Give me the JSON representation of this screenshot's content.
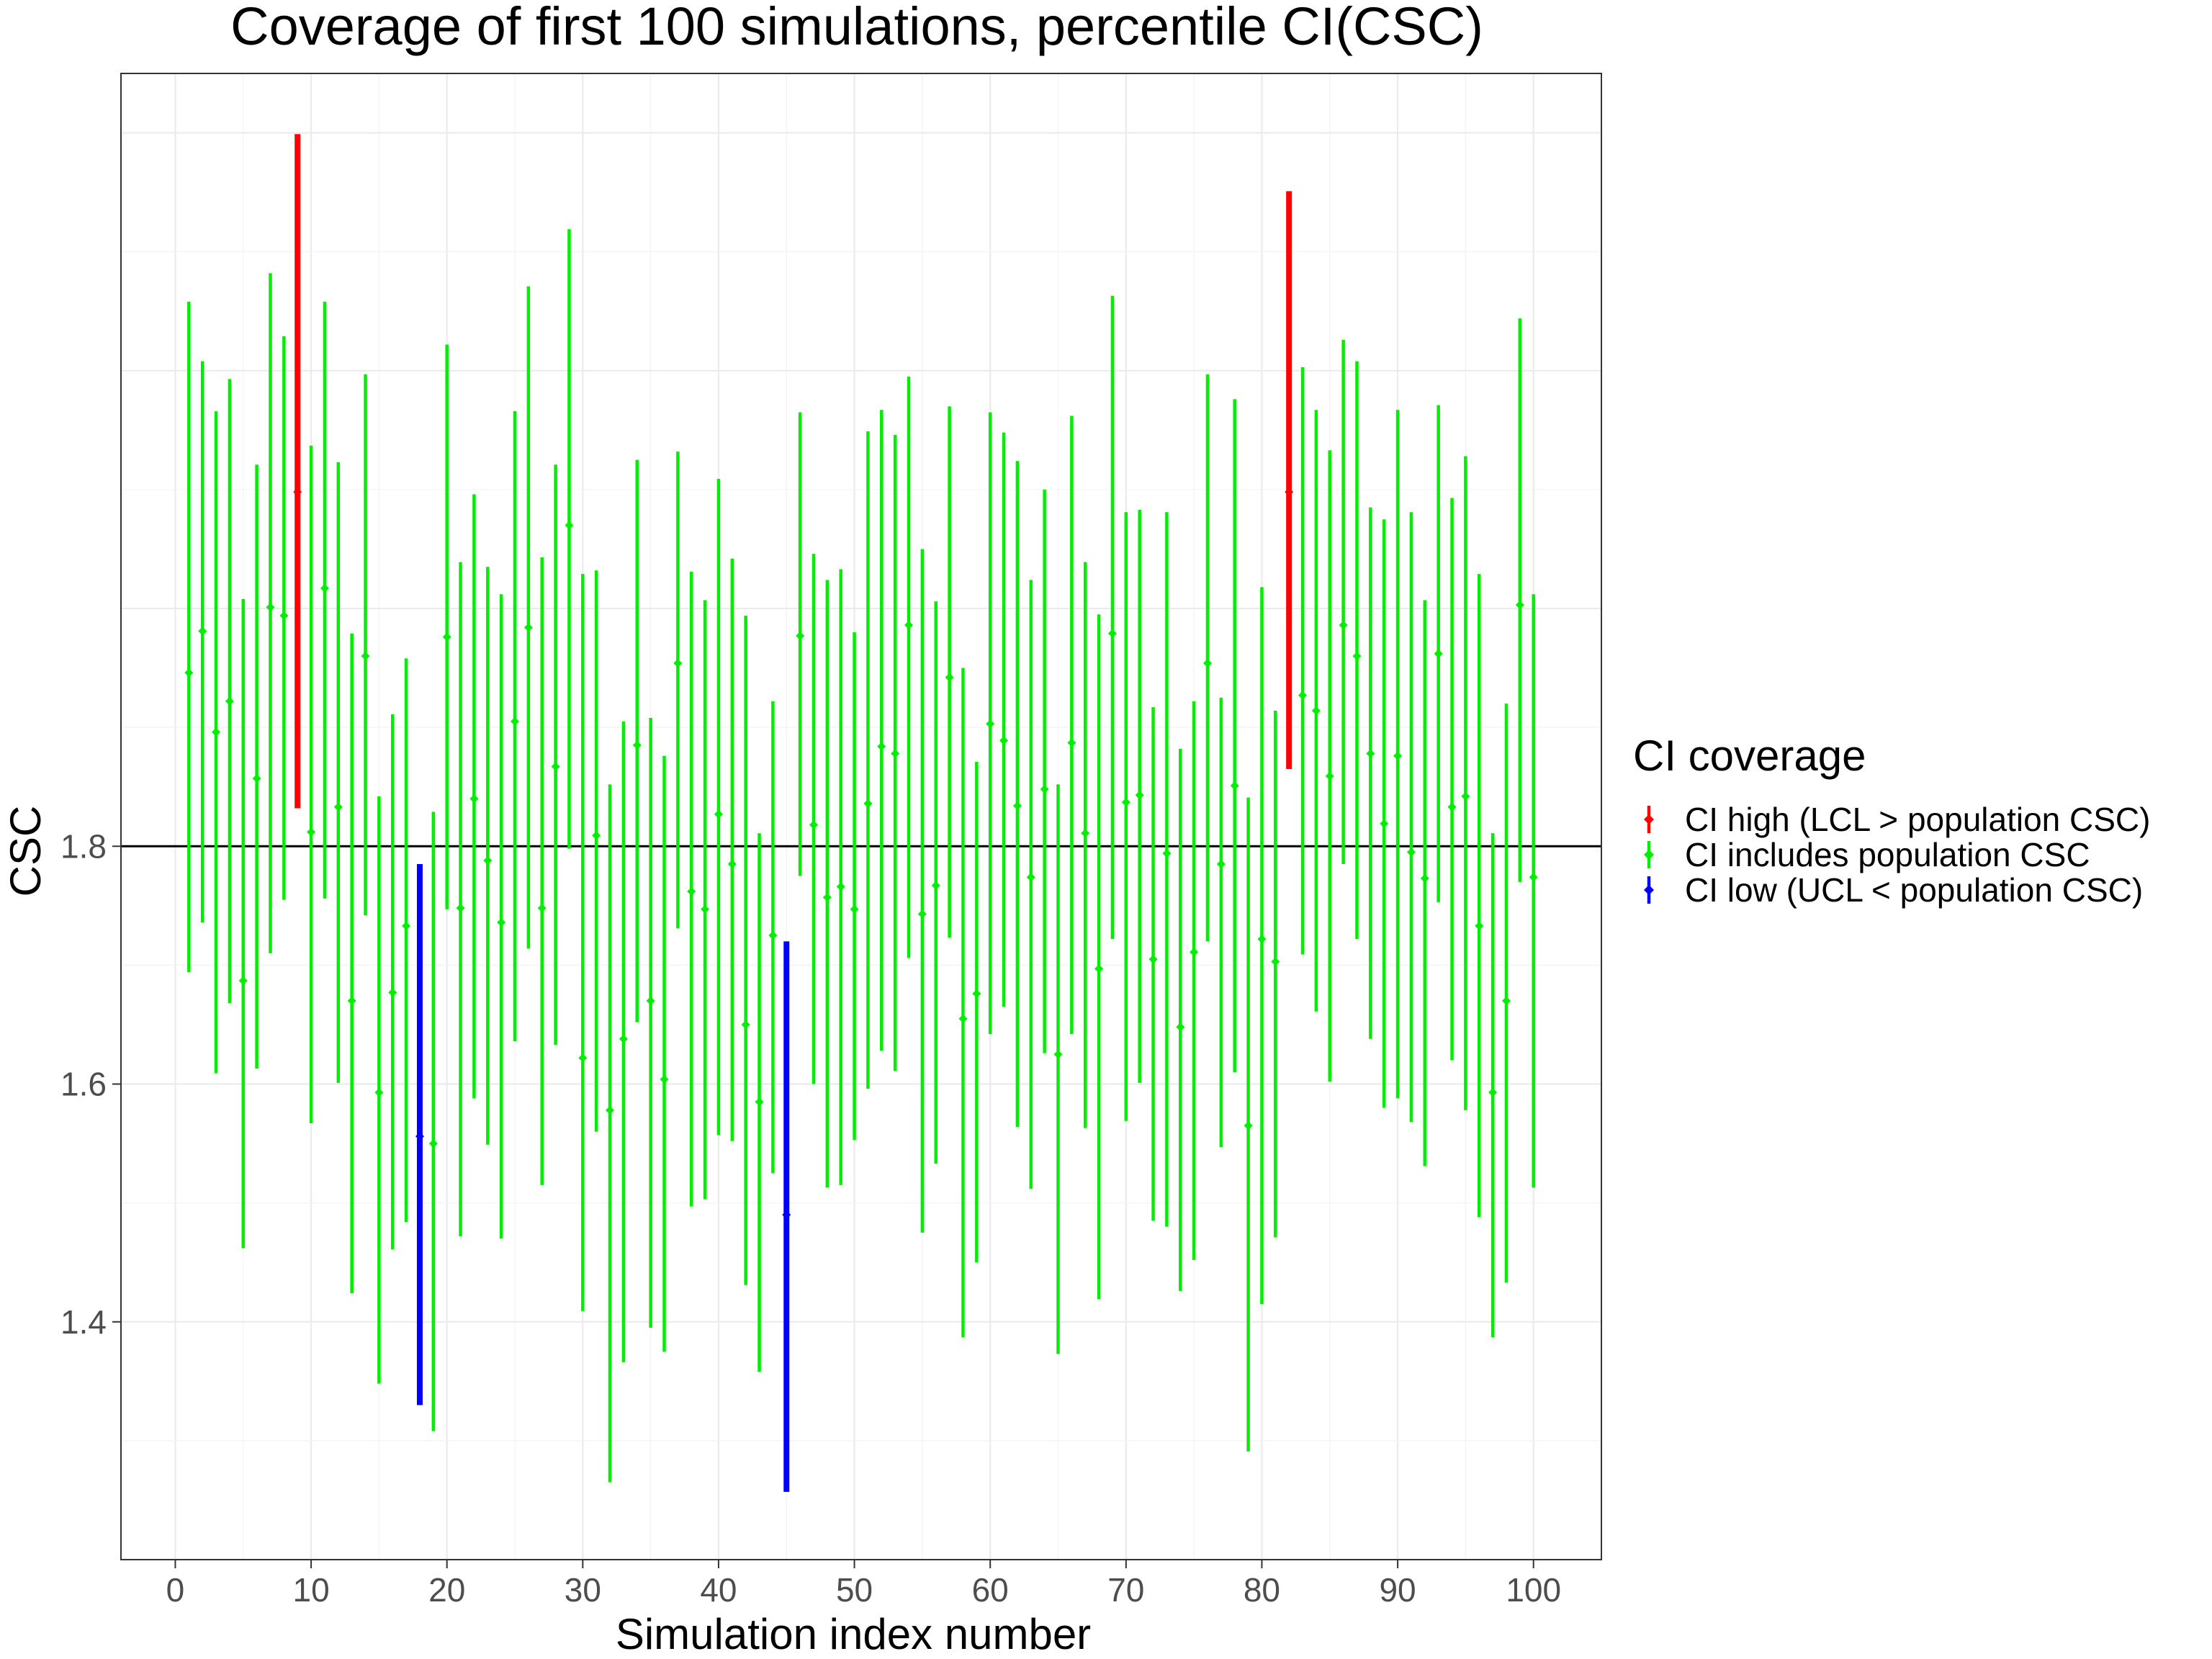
{
  "chart_data": {
    "type": "errorbar",
    "title": "Coverage of first 100 simulations, percentile CI(CSC)",
    "xlabel": "Simulation index number",
    "ylabel": "CSC",
    "xlim": [
      -4,
      105
    ],
    "ylim": [
      1.2,
      2.45
    ],
    "x_ticks": [
      0,
      10,
      20,
      30,
      40,
      50,
      60,
      70,
      80,
      90,
      100
    ],
    "x_tick_labels": [
      "0",
      "10",
      "20",
      "30",
      "40",
      "50",
      "60",
      "70",
      "80",
      "90",
      "100"
    ],
    "y_ticks": [
      1.4,
      1.6,
      1.8
    ],
    "y_tick_labels": [
      "1.4",
      "1.6",
      "1.8"
    ],
    "reference_line": 1.8,
    "grid": true,
    "legend": {
      "title": "CI coverage",
      "position": "right",
      "entries": [
        {
          "key": "high",
          "label": "CI high (LCL > population CSC)",
          "color": "#ff0000"
        },
        {
          "key": "inc",
          "label": "CI includes population CSC",
          "color": "#00ee00"
        },
        {
          "key": "low",
          "label": "CI low (UCL < population CSC)",
          "color": "#0000ff"
        }
      ]
    },
    "x": [
      1,
      2,
      3,
      4,
      5,
      6,
      7,
      8,
      9,
      10,
      11,
      12,
      13,
      14,
      15,
      16,
      17,
      18,
      19,
      20,
      21,
      22,
      23,
      24,
      25,
      26,
      27,
      28,
      29,
      30,
      31,
      32,
      33,
      34,
      35,
      36,
      37,
      38,
      39,
      40,
      41,
      42,
      43,
      44,
      45,
      46,
      47,
      48,
      49,
      50,
      51,
      52,
      53,
      54,
      55,
      56,
      57,
      58,
      59,
      60,
      61,
      62,
      63,
      64,
      65,
      66,
      67,
      68,
      69,
      70,
      71,
      72,
      73,
      74,
      75,
      76,
      77,
      78,
      79,
      80,
      81,
      82,
      83,
      84,
      85,
      86,
      87,
      88,
      89,
      90,
      91,
      92,
      93,
      94,
      95,
      96,
      97,
      98,
      99,
      100
    ],
    "estimate": [
      1.946,
      1.981,
      1.896,
      1.922,
      1.687,
      1.857,
      2.001,
      1.994,
      2.098,
      1.812,
      2.017,
      1.833,
      1.67,
      1.96,
      1.593,
      1.677,
      1.733,
      1.556,
      1.55,
      1.976,
      1.748,
      1.84,
      1.788,
      1.736,
      1.905,
      1.984,
      1.748,
      1.867,
      2.07,
      1.622,
      1.809,
      1.578,
      1.638,
      1.885,
      1.67,
      1.604,
      1.954,
      1.762,
      1.747,
      1.827,
      1.785,
      1.65,
      1.585,
      1.725,
      1.49,
      1.977,
      1.818,
      1.757,
      1.766,
      1.747,
      1.836,
      1.884,
      1.878,
      1.986,
      1.743,
      1.767,
      1.942,
      1.655,
      1.676,
      1.903,
      1.889,
      1.834,
      1.774,
      1.848,
      1.625,
      1.887,
      1.811,
      1.697,
      1.979,
      1.837,
      1.843,
      1.705,
      1.794,
      1.648,
      1.711,
      1.954,
      1.785,
      1.851,
      1.565,
      1.722,
      1.703,
      2.098,
      1.927,
      1.914,
      1.859,
      1.986,
      1.96,
      1.878,
      1.819,
      1.876,
      1.795,
      1.773,
      1.962,
      1.833,
      1.842,
      1.733,
      1.593,
      1.67,
      2.003,
      1.774
    ],
    "lower": [
      1.694,
      1.736,
      1.609,
      1.668,
      1.462,
      1.613,
      1.71,
      1.755,
      1.832,
      1.567,
      1.756,
      1.601,
      1.424,
      1.742,
      1.348,
      1.461,
      1.484,
      1.33,
      1.308,
      1.747,
      1.472,
      1.588,
      1.549,
      1.47,
      1.636,
      1.714,
      1.515,
      1.633,
      1.798,
      1.409,
      1.56,
      1.265,
      1.366,
      1.652,
      1.395,
      1.375,
      1.731,
      1.497,
      1.503,
      1.557,
      1.552,
      1.431,
      1.358,
      1.525,
      1.257,
      1.775,
      1.6,
      1.513,
      1.515,
      1.553,
      1.596,
      1.628,
      1.611,
      1.706,
      1.475,
      1.533,
      1.723,
      1.387,
      1.45,
      1.642,
      1.665,
      1.564,
      1.512,
      1.626,
      1.373,
      1.642,
      1.563,
      1.419,
      1.722,
      1.569,
      1.601,
      1.485,
      1.48,
      1.426,
      1.452,
      1.72,
      1.547,
      1.61,
      1.291,
      1.415,
      1.471,
      1.865,
      1.709,
      1.661,
      1.602,
      1.785,
      1.722,
      1.638,
      1.58,
      1.588,
      1.568,
      1.531,
      1.753,
      1.62,
      1.578,
      1.488,
      1.387,
      1.433,
      1.77,
      1.513
    ],
    "upper": [
      2.258,
      2.208,
      2.166,
      2.193,
      2.008,
      2.121,
      2.282,
      2.229,
      2.399,
      2.137,
      2.258,
      2.123,
      1.979,
      2.197,
      1.842,
      1.911,
      1.958,
      1.785,
      1.829,
      2.222,
      2.039,
      2.096,
      2.035,
      2.012,
      2.166,
      2.271,
      2.043,
      2.121,
      2.319,
      2.029,
      2.032,
      1.852,
      1.905,
      2.125,
      1.908,
      1.876,
      2.132,
      2.031,
      2.007,
      2.109,
      2.042,
      1.994,
      1.811,
      1.922,
      1.72,
      2.165,
      2.046,
      2.024,
      2.033,
      1.98,
      2.149,
      2.167,
      2.146,
      2.195,
      2.05,
      2.006,
      2.17,
      1.95,
      1.871,
      2.165,
      2.148,
      2.124,
      2.024,
      2.1,
      1.852,
      2.162,
      2.039,
      1.995,
      2.263,
      2.081,
      2.083,
      1.917,
      2.081,
      1.882,
      1.922,
      2.197,
      1.925,
      2.176,
      1.841,
      2.018,
      1.914,
      2.351,
      2.203,
      2.167,
      2.133,
      2.226,
      2.208,
      2.085,
      2.075,
      2.167,
      2.081,
      2.007,
      2.171,
      2.093,
      2.128,
      2.029,
      1.811,
      1.92,
      2.244,
      2.012
    ],
    "status": [
      "inc",
      "inc",
      "inc",
      "inc",
      "inc",
      "inc",
      "inc",
      "inc",
      "high",
      "inc",
      "inc",
      "inc",
      "inc",
      "inc",
      "inc",
      "inc",
      "inc",
      "low",
      "inc",
      "inc",
      "inc",
      "inc",
      "inc",
      "inc",
      "inc",
      "inc",
      "inc",
      "inc",
      "inc",
      "inc",
      "inc",
      "inc",
      "inc",
      "inc",
      "inc",
      "inc",
      "inc",
      "inc",
      "inc",
      "inc",
      "inc",
      "inc",
      "inc",
      "inc",
      "low",
      "inc",
      "inc",
      "inc",
      "inc",
      "inc",
      "inc",
      "inc",
      "inc",
      "inc",
      "inc",
      "inc",
      "inc",
      "inc",
      "inc",
      "inc",
      "inc",
      "inc",
      "inc",
      "inc",
      "inc",
      "inc",
      "inc",
      "inc",
      "inc",
      "inc",
      "inc",
      "inc",
      "inc",
      "inc",
      "inc",
      "inc",
      "inc",
      "inc",
      "inc",
      "inc",
      "inc",
      "high",
      "inc",
      "inc",
      "inc",
      "inc",
      "inc",
      "inc",
      "inc",
      "inc",
      "inc",
      "inc",
      "inc",
      "inc",
      "inc",
      "inc",
      "inc",
      "inc",
      "inc",
      "inc"
    ]
  }
}
